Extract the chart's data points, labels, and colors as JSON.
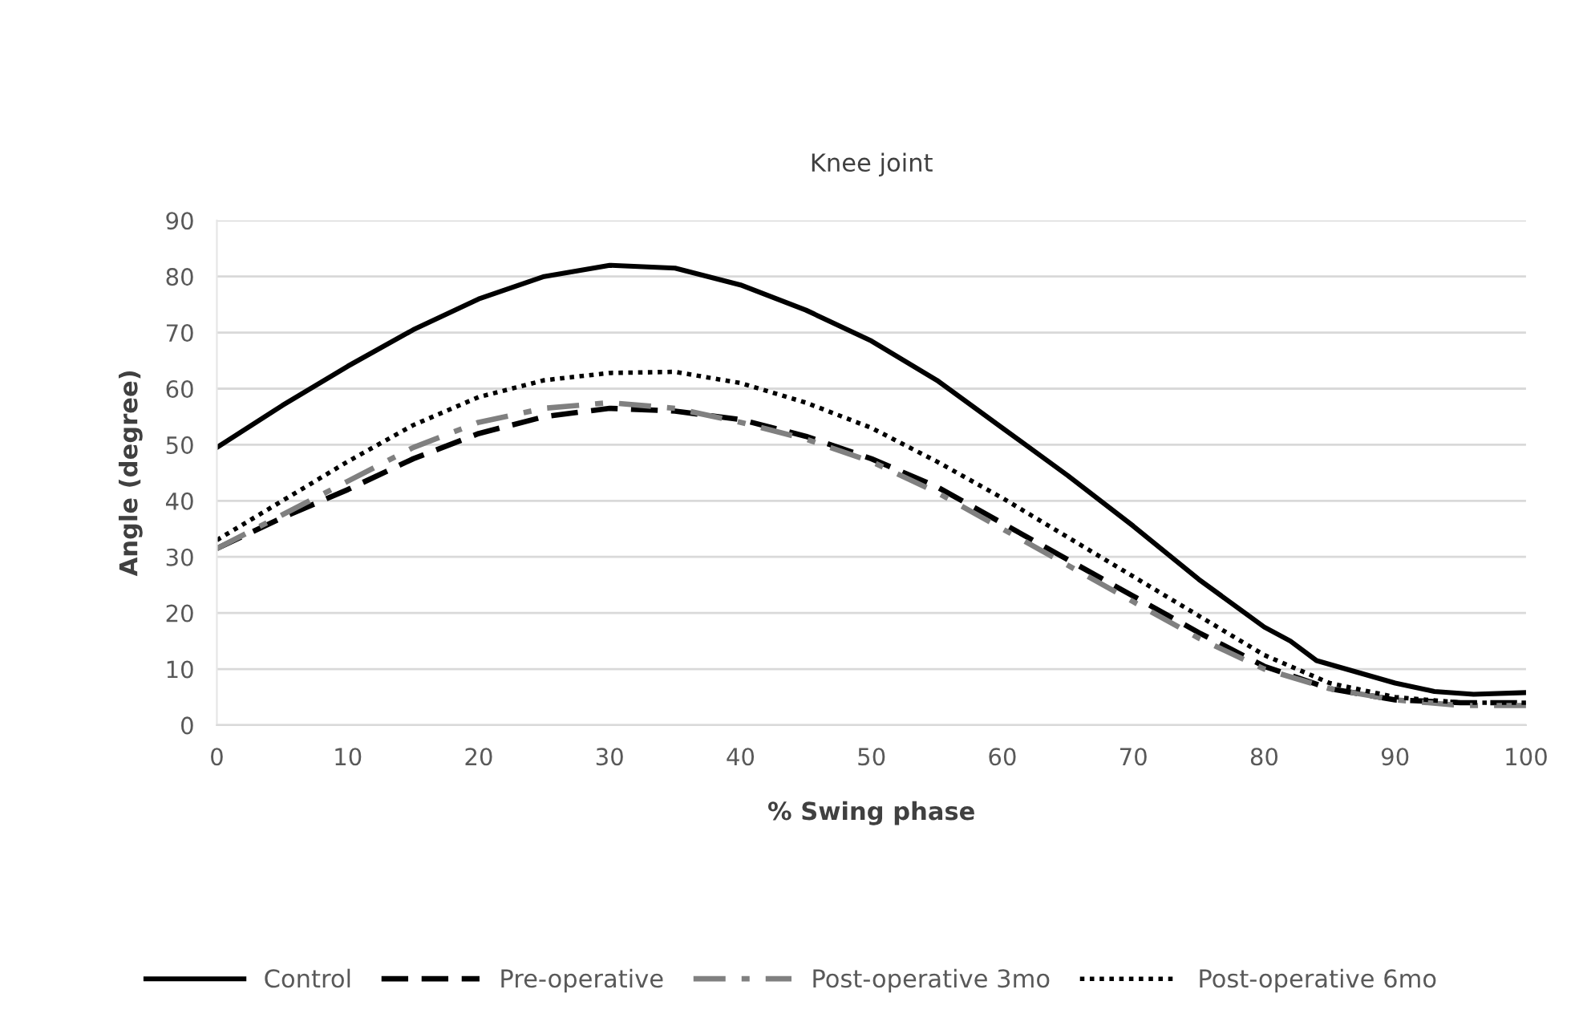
{
  "chart_data": {
    "type": "line",
    "title": "Knee joint",
    "xlabel": "% Swing phase",
    "ylabel": "Angle (degree)",
    "xlim": [
      0,
      100
    ],
    "xticks": [
      0,
      10,
      20,
      30,
      40,
      50,
      60,
      70,
      80,
      90,
      100
    ],
    "ylim": [
      0,
      90
    ],
    "yticks": [
      0,
      10,
      20,
      30,
      40,
      50,
      60,
      70,
      80,
      90
    ],
    "grid": "y",
    "legend": "bottom",
    "series": [
      {
        "name": "Control",
        "color": "#000000",
        "line_style": "solid",
        "x": [
          0,
          5,
          10,
          15,
          20,
          25,
          30,
          35,
          40,
          45,
          50,
          55,
          60,
          65,
          70,
          75,
          80,
          82,
          84,
          87,
          90,
          93,
          96,
          100
        ],
        "values": [
          49.5,
          57,
          64,
          70.5,
          76,
          80,
          82,
          81.5,
          78.5,
          74,
          68.5,
          61.5,
          53,
          44.5,
          35.5,
          26,
          17.5,
          15,
          11.5,
          9.5,
          7.5,
          6,
          5.5,
          5.8
        ]
      },
      {
        "name": "Pre-operative",
        "color": "#000000",
        "line_style": "dashed",
        "x": [
          0,
          5,
          10,
          15,
          20,
          25,
          30,
          35,
          40,
          45,
          50,
          55,
          60,
          65,
          70,
          75,
          80,
          85,
          90,
          95,
          100
        ],
        "values": [
          31.5,
          37,
          42,
          47.5,
          52,
          55,
          56.5,
          56,
          54.5,
          51.5,
          47.5,
          42.5,
          36,
          29.5,
          23,
          16.5,
          10.5,
          6.5,
          4.5,
          4,
          4
        ]
      },
      {
        "name": "Post-operative 3mo",
        "color": "#808080",
        "line_style": "dashdot",
        "x": [
          0,
          5,
          10,
          15,
          20,
          25,
          30,
          35,
          40,
          45,
          50,
          55,
          60,
          65,
          70,
          75,
          80,
          85,
          90,
          95,
          100
        ],
        "values": [
          31.5,
          37.5,
          43.5,
          49.5,
          54,
          56.5,
          57.5,
          56.5,
          54,
          51,
          47,
          41.5,
          35,
          28.5,
          22,
          15.5,
          10,
          6.5,
          4.5,
          3.5,
          3.5
        ]
      },
      {
        "name": "Post-operative 6mo",
        "color": "#000000",
        "line_style": "dotted",
        "x": [
          0,
          5,
          10,
          15,
          20,
          25,
          30,
          35,
          40,
          45,
          50,
          55,
          60,
          65,
          70,
          75,
          80,
          85,
          90,
          95,
          100
        ],
        "values": [
          33,
          40,
          47,
          53.5,
          58.5,
          61.5,
          62.8,
          63,
          61,
          57.5,
          53,
          47,
          40.5,
          33.5,
          26.5,
          19.5,
          12.5,
          7.5,
          5,
          4,
          4
        ]
      }
    ]
  }
}
